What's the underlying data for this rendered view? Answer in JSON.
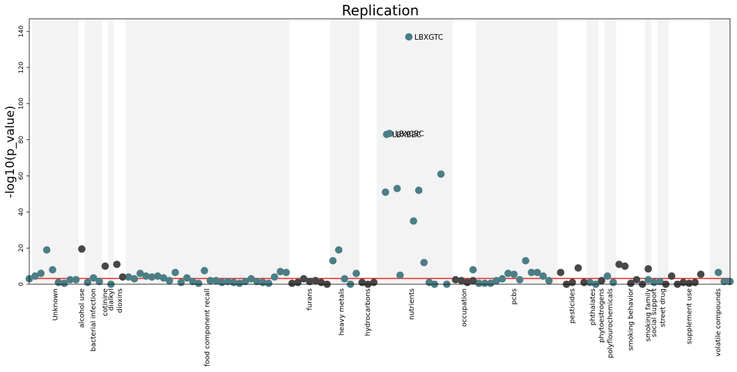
{
  "chart_data": {
    "type": "scatter",
    "title": "Replication",
    "xlabel": "",
    "ylabel": "-log10(p_value)",
    "ylim": [
      0,
      147
    ],
    "yticks": [
      0,
      20,
      40,
      60,
      80,
      100,
      120,
      140
    ],
    "xlim": [
      0,
      120
    ],
    "threshold": 3.2,
    "colors": {
      "teal": "#4c7e86",
      "dark": "#474747",
      "band": "#f3f3f3",
      "threshold": "#e8302a"
    },
    "categories": [
      {
        "name": "Unknown",
        "band": [
          0.5,
          8.5
        ],
        "label_x": 4.5,
        "shade": true
      },
      {
        "name": "alcohol use",
        "band": [
          8.5,
          9.5
        ],
        "label_x": 9.0,
        "shade": false
      },
      {
        "name": "bacterial infection",
        "band": [
          9.5,
          12.5
        ],
        "label_x": 11.0,
        "shade": true
      },
      {
        "name": "cotinine",
        "band": [
          12.5,
          13.5
        ],
        "label_x": 13.0,
        "shade": false
      },
      {
        "name": "dialkyl",
        "band": [
          13.5,
          14.5
        ],
        "label_x": 14.0,
        "shade": true
      },
      {
        "name": "dioxins",
        "band": [
          14.5,
          16.5
        ],
        "label_x": 15.5,
        "shade": false
      },
      {
        "name": "food component recall",
        "band": [
          16.5,
          44.5
        ],
        "label_x": 30.5,
        "shade": true
      },
      {
        "name": "furans",
        "band": [
          44.5,
          51.5
        ],
        "label_x": 48.0,
        "shade": false
      },
      {
        "name": "heavy metals",
        "band": [
          51.5,
          56.5
        ],
        "label_x": 53.5,
        "shade": true
      },
      {
        "name": "hydrocarbons",
        "band": [
          56.5,
          59.5
        ],
        "label_x": 58.0,
        "shade": false
      },
      {
        "name": "nutrients",
        "band": [
          59.5,
          72.5
        ],
        "label_x": 65.5,
        "shade": true
      },
      {
        "name": "occupation",
        "band": [
          72.5,
          76.5
        ],
        "label_x": 74.5,
        "shade": false
      },
      {
        "name": "pcbs",
        "band": [
          76.5,
          90.5
        ],
        "label_x": 83.0,
        "shade": true
      },
      {
        "name": "pesticides",
        "band": [
          90.5,
          95.5
        ],
        "label_x": 93.0,
        "shade": false
      },
      {
        "name": "phthalates",
        "band": [
          95.5,
          97.5
        ],
        "label_x": 96.5,
        "shade": true
      },
      {
        "name": "phytoestrogens",
        "band": [
          97.5,
          98.5
        ],
        "label_x": 98.0,
        "shade": false
      },
      {
        "name": "polyflourochemicals",
        "band": [
          98.5,
          100.5
        ],
        "label_x": 99.5,
        "shade": true
      },
      {
        "name": "smoking behavior",
        "band": [
          100.5,
          105.5
        ],
        "label_x": 103.0,
        "shade": false
      },
      {
        "name": "smoking family",
        "band": [
          105.5,
          106.5
        ],
        "label_x": 106.0,
        "shade": true
      },
      {
        "name": "social support",
        "band": [
          106.5,
          107.5
        ],
        "label_x": 107.0,
        "shade": false
      },
      {
        "name": "street drug",
        "band": [
          107.5,
          109.5
        ],
        "label_x": 108.5,
        "shade": true
      },
      {
        "name": "supplement use",
        "band": [
          109.5,
          116.5
        ],
        "label_x": 113.0,
        "shade": false
      },
      {
        "name": "volatile compounds",
        "band": [
          116.5,
          120.5
        ],
        "label_x": 118.0,
        "shade": true
      }
    ],
    "series": [
      {
        "color": "teal",
        "points": [
          [
            0,
            3
          ],
          [
            1,
            4.5
          ],
          [
            2,
            6
          ],
          [
            3,
            19
          ],
          [
            4,
            8
          ],
          [
            5,
            1
          ],
          [
            6,
            0.5
          ],
          [
            7,
            2.5
          ],
          [
            8,
            2.5
          ],
          [
            10,
            1
          ],
          [
            11,
            3.5
          ],
          [
            12,
            1.5
          ],
          [
            14,
            0
          ],
          [
            17,
            4
          ],
          [
            18,
            3
          ],
          [
            19,
            6
          ],
          [
            20,
            4.5
          ],
          [
            21,
            4
          ],
          [
            22,
            4.5
          ],
          [
            23,
            3.5
          ],
          [
            24,
            2
          ],
          [
            25,
            6.5
          ],
          [
            26,
            1
          ],
          [
            27,
            3.5
          ],
          [
            28,
            1.5
          ],
          [
            29,
            0.5
          ],
          [
            30,
            7.5
          ],
          [
            31,
            2
          ],
          [
            32,
            2
          ],
          [
            33,
            1
          ],
          [
            34,
            1.5
          ],
          [
            35,
            1
          ],
          [
            36,
            0.5
          ],
          [
            37,
            1.5
          ],
          [
            38,
            3
          ],
          [
            39,
            1.5
          ],
          [
            40,
            1
          ],
          [
            41,
            0.5
          ],
          [
            42,
            4
          ],
          [
            43,
            7
          ],
          [
            44,
            6.5
          ],
          [
            52,
            13
          ],
          [
            53,
            19
          ],
          [
            54,
            3
          ],
          [
            55,
            0
          ],
          [
            56,
            6
          ],
          [
            61,
            51
          ],
          [
            61.2,
            83
          ],
          [
            61.7,
            83.5
          ],
          [
            63,
            53
          ],
          [
            63.5,
            5
          ],
          [
            65,
            137
          ],
          [
            65.8,
            35
          ],
          [
            66.7,
            52
          ],
          [
            67.6,
            12
          ],
          [
            68.5,
            1
          ],
          [
            69.4,
            0
          ],
          [
            70.5,
            61
          ],
          [
            71.5,
            0
          ],
          [
            76,
            8
          ],
          [
            77,
            0.5
          ],
          [
            78,
            0.5
          ],
          [
            79,
            0.5
          ],
          [
            80,
            2
          ],
          [
            81,
            3
          ],
          [
            82,
            6
          ],
          [
            83,
            5.5
          ],
          [
            84,
            2.5
          ],
          [
            85,
            13
          ],
          [
            86,
            6.5
          ],
          [
            87,
            6.5
          ],
          [
            88,
            4.5
          ],
          [
            89,
            2
          ],
          [
            96,
            1
          ],
          [
            97,
            0
          ],
          [
            99,
            4.5
          ],
          [
            100,
            1
          ],
          [
            106,
            2.5
          ],
          [
            107,
            1
          ],
          [
            108,
            1.5
          ],
          [
            118,
            6.5
          ],
          [
            119,
            1.5
          ],
          [
            120,
            1.5
          ]
        ]
      },
      {
        "color": "dark",
        "points": [
          [
            9,
            19.5
          ],
          [
            13,
            10
          ],
          [
            15,
            11
          ],
          [
            16,
            4
          ],
          [
            45,
            0.5
          ],
          [
            46,
            1
          ],
          [
            47,
            3
          ],
          [
            48,
            1.5
          ],
          [
            49,
            2
          ],
          [
            50,
            1
          ],
          [
            51,
            0
          ],
          [
            57,
            1
          ],
          [
            58,
            0
          ],
          [
            59,
            1
          ],
          [
            73,
            2.5
          ],
          [
            74,
            2
          ],
          [
            75,
            1
          ],
          [
            76,
            2
          ],
          [
            91,
            6.5
          ],
          [
            92,
            0
          ],
          [
            93,
            1
          ],
          [
            94,
            9
          ],
          [
            95,
            1
          ],
          [
            98,
            2
          ],
          [
            101,
            11
          ],
          [
            102,
            10
          ],
          [
            103,
            0.5
          ],
          [
            104,
            2.5
          ],
          [
            105,
            0
          ],
          [
            106,
            8.5
          ],
          [
            109,
            0
          ],
          [
            110,
            4.5
          ],
          [
            111,
            0
          ],
          [
            112,
            1
          ],
          [
            113,
            0.5
          ],
          [
            114,
            1
          ],
          [
            115,
            5.5
          ]
        ]
      }
    ],
    "annotations": [
      {
        "text": "LBXGTC",
        "x": 65,
        "y": 137
      },
      {
        "text": "LBXBEC",
        "x": 61.2,
        "y": 83
      },
      {
        "text": "LBXCBC",
        "x": 61.7,
        "y": 83.5
      }
    ]
  }
}
